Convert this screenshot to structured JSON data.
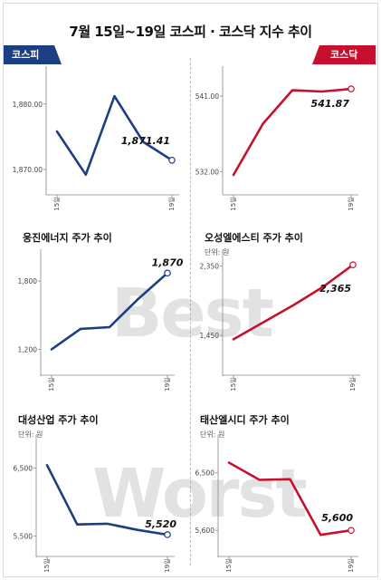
{
  "page": {
    "title": "7월 15일~19일 코스피 · 코스닥 지수 추이"
  },
  "watermarks": {
    "best": "Best",
    "worst": "Worst"
  },
  "colors": {
    "blue": "#1c3e82",
    "red": "#c8102e",
    "axis": "#888888"
  },
  "chart_data": [
    {
      "id": "kospi",
      "type": "line",
      "tab": "코스피",
      "color": "blue",
      "x": [
        "15일",
        "16일",
        "17일",
        "18일",
        "19일"
      ],
      "xticks": [
        "15일",
        "19일"
      ],
      "values": [
        1875.8,
        1869.2,
        1881.2,
        1874.2,
        1871.41
      ],
      "ylim": [
        1867.5,
        1884.4
      ],
      "yticks": [
        "1,880.00",
        "1,870.00"
      ],
      "ytickvals": [
        1880,
        1870
      ],
      "data_label": "1,871.41"
    },
    {
      "id": "kosdaq",
      "type": "line",
      "tab": "코스닥",
      "color": "red",
      "x": [
        "15일",
        "16일",
        "17일",
        "18일",
        "19일"
      ],
      "xticks": [
        "15일",
        "19일"
      ],
      "values": [
        531.6,
        537.7,
        541.7,
        541.55,
        541.87
      ],
      "ylim": [
        530.3,
        543.5
      ],
      "yticks": [
        "541.00",
        "532.00"
      ],
      "ytickvals": [
        541,
        532
      ],
      "data_label": "541.87"
    },
    {
      "id": "woongjin",
      "type": "line",
      "title": "웅진에너지 주가 추이",
      "color": "blue",
      "x": [
        "15일",
        "16일",
        "17일",
        "18일",
        "19일"
      ],
      "xticks": [
        "15일",
        "19일"
      ],
      "values": [
        1200,
        1380,
        1395,
        1645,
        1870
      ],
      "ylim": [
        1045,
        2000
      ],
      "yticks": [
        "1,800",
        "1,200"
      ],
      "ytickvals": [
        1800,
        1200
      ],
      "data_label": "1,870"
    },
    {
      "id": "osung",
      "type": "line",
      "title": "오성엘에스티 주가 추이",
      "subtitle": "단위: 원",
      "color": "red",
      "x": [
        "15일",
        "16일",
        "17일",
        "18일",
        "19일"
      ],
      "xticks": [
        "15일",
        "19일"
      ],
      "values": [
        1400,
        1620,
        1840,
        2080,
        2365
      ],
      "ylim": [
        1040,
        2450
      ],
      "yticks": [
        "2,350",
        "1,450"
      ],
      "ytickvals": [
        2350,
        1450
      ],
      "data_label": "2,365"
    },
    {
      "id": "daesung",
      "type": "line",
      "title": "대성산업 주가 추이",
      "subtitle": "단위: 원",
      "color": "blue",
      "x": [
        "15일",
        "16일",
        "17일",
        "18일",
        "19일"
      ],
      "xticks": [
        "15일",
        "19일"
      ],
      "values": [
        6540,
        5670,
        5680,
        5590,
        5520
      ],
      "ylim": [
        5320,
        6850
      ],
      "yticks": [
        "6,500",
        "5,500"
      ],
      "ytickvals": [
        6500,
        5500
      ],
      "data_label": "5,520"
    },
    {
      "id": "taesan",
      "type": "line",
      "title": "태산엘시디 주가 추이",
      "subtitle": "단위: 원",
      "color": "red",
      "x": [
        "15일",
        "16일",
        "17일",
        "18일",
        "19일"
      ],
      "xticks": [
        "15일",
        "19일"
      ],
      "values": [
        6660,
        6390,
        6400,
        5530,
        5600
      ],
      "ylim": [
        5320,
        6950
      ],
      "yticks": [
        "6,500",
        "5,600"
      ],
      "ytickvals": [
        6500,
        5600
      ],
      "data_label": "5,600"
    }
  ]
}
